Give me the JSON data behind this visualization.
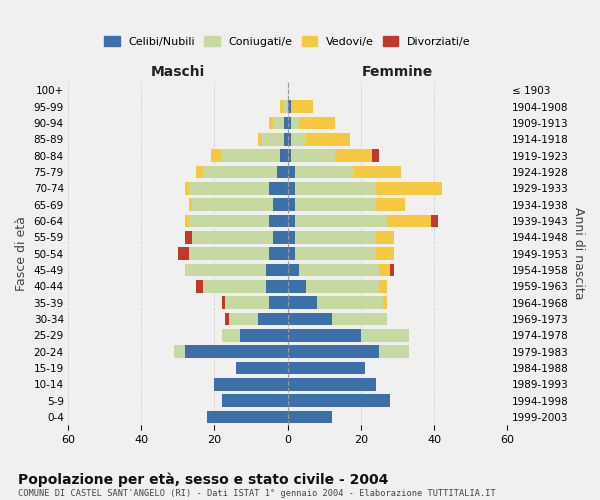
{
  "age_groups": [
    "0-4",
    "5-9",
    "10-14",
    "15-19",
    "20-24",
    "25-29",
    "30-34",
    "35-39",
    "40-44",
    "45-49",
    "50-54",
    "55-59",
    "60-64",
    "65-69",
    "70-74",
    "75-79",
    "80-84",
    "85-89",
    "90-94",
    "95-99",
    "100+"
  ],
  "birth_years": [
    "1999-2003",
    "1994-1998",
    "1989-1993",
    "1984-1988",
    "1979-1983",
    "1974-1978",
    "1969-1973",
    "1964-1968",
    "1959-1963",
    "1954-1958",
    "1949-1953",
    "1944-1948",
    "1939-1943",
    "1934-1938",
    "1929-1933",
    "1924-1928",
    "1919-1923",
    "1914-1918",
    "1909-1913",
    "1904-1908",
    "≤ 1903"
  ],
  "males": {
    "celibe": [
      22,
      18,
      20,
      14,
      28,
      13,
      8,
      5,
      6,
      6,
      5,
      4,
      5,
      4,
      5,
      3,
      2,
      1,
      1,
      0,
      0
    ],
    "coniugato": [
      0,
      0,
      0,
      0,
      3,
      5,
      8,
      12,
      17,
      22,
      22,
      22,
      22,
      22,
      22,
      20,
      16,
      6,
      3,
      1,
      0
    ],
    "vedovo": [
      0,
      0,
      0,
      0,
      0,
      0,
      0,
      0,
      0,
      0,
      0,
      0,
      1,
      1,
      1,
      2,
      3,
      1,
      1,
      1,
      0
    ],
    "divorziato": [
      0,
      0,
      0,
      0,
      0,
      0,
      1,
      1,
      2,
      0,
      3,
      2,
      0,
      0,
      0,
      0,
      0,
      0,
      0,
      0,
      0
    ]
  },
  "females": {
    "nubile": [
      12,
      28,
      24,
      21,
      25,
      20,
      12,
      8,
      5,
      3,
      2,
      2,
      2,
      2,
      2,
      2,
      1,
      1,
      1,
      1,
      0
    ],
    "coniugata": [
      0,
      0,
      0,
      0,
      8,
      13,
      15,
      18,
      20,
      22,
      22,
      22,
      25,
      22,
      22,
      16,
      12,
      4,
      2,
      0,
      0
    ],
    "vedova": [
      0,
      0,
      0,
      0,
      0,
      0,
      0,
      1,
      2,
      3,
      5,
      5,
      12,
      8,
      18,
      13,
      10,
      12,
      10,
      6,
      0
    ],
    "divorziata": [
      0,
      0,
      0,
      0,
      0,
      0,
      0,
      0,
      0,
      1,
      0,
      0,
      2,
      0,
      0,
      0,
      2,
      0,
      0,
      0,
      0
    ]
  },
  "colors": {
    "celibe": "#3d6fa8",
    "coniugato": "#c5d9a0",
    "vedovo": "#f5c842",
    "divorziato": "#c0392b"
  },
  "xlim": 60,
  "title": "Popolazione per età, sesso e stato civile - 2004",
  "subtitle": "COMUNE DI CASTEL SANT'ANGELO (RI) - Dati ISTAT 1° gennaio 2004 - Elaborazione TUTTITALIA.IT",
  "ylabel": "Fasce di età",
  "ylabel_right": "Anni di nascita",
  "xlabel_left": "Maschi",
  "xlabel_right": "Femmine",
  "bg_color": "#f0f0f0",
  "grid_color": "#cccccc"
}
